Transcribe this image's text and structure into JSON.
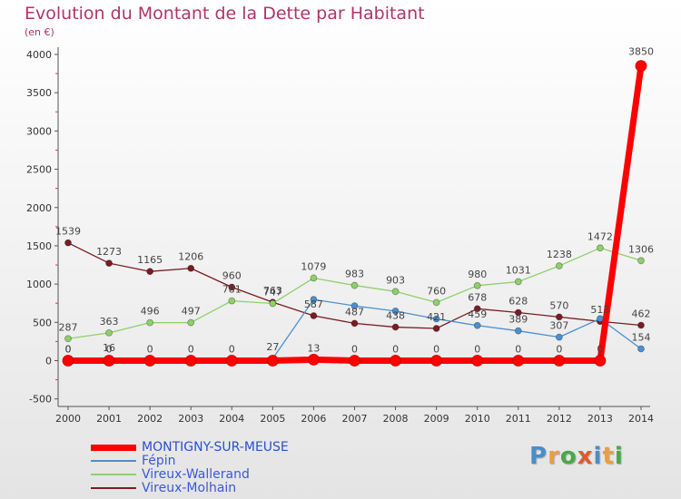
{
  "title": "Evolution du Montant de la Dette par Habitant",
  "subtitle": "(en €)",
  "brand": {
    "letters": [
      "P",
      "r",
      "o",
      "x",
      "i",
      "t",
      "i"
    ],
    "colors": [
      "#4a8ec8",
      "#e8a13a",
      "#4aa849",
      "#e05a2a",
      "#4a8ec8",
      "#e8a13a",
      "#4aa849"
    ]
  },
  "chart_data": {
    "type": "line",
    "x": [
      2000,
      2001,
      2002,
      2003,
      2004,
      2005,
      2006,
      2007,
      2008,
      2009,
      2010,
      2011,
      2012,
      2013,
      2014
    ],
    "xticks": [
      "2000",
      "2001",
      "2002",
      "2003",
      "2004",
      "2005",
      "2006",
      "2007",
      "2008",
      "2009",
      "2010",
      "2011",
      "2012",
      "2013",
      "2014"
    ],
    "yticks": [
      "4000",
      "3500",
      "3000",
      "2500",
      "2000",
      "1500",
      "1000",
      "500",
      "0",
      "-500"
    ],
    "ylim": [
      -500,
      4000
    ],
    "grid": false,
    "legend_position": "bottom-left",
    "series": [
      {
        "name": "MONTIGNY-SUR-MEUSE",
        "color": "#ff0000",
        "values": [
          0,
          0,
          0,
          0,
          0,
          0,
          13,
          0,
          0,
          0,
          0,
          0,
          0,
          0,
          3850
        ],
        "labels": [
          "0",
          "0",
          "0",
          "0",
          "0",
          "",
          "13",
          "0",
          "0",
          "0",
          "0",
          "0",
          "0",
          "0",
          "3850"
        ]
      },
      {
        "name": "Fépin",
        "color": "#4a90d0",
        "values": [
          0,
          16,
          24,
          13,
          0,
          27,
          799,
          716,
          647,
          545,
          459,
          389,
          307,
          548,
          154
        ],
        "labels": [
          "0",
          "16",
          "",
          "",
          "",
          "27",
          "",
          "",
          "",
          "",
          "459",
          "389",
          "307",
          "",
          "154"
        ]
      },
      {
        "name": "Vireux-Wallerand",
        "color": "#8ed06a",
        "values": [
          287,
          363,
          496,
          497,
          781,
          747,
          1079,
          983,
          903,
          760,
          980,
          1031,
          1238,
          1472,
          1306
        ],
        "labels": [
          "287",
          "363",
          "496",
          "497",
          "781",
          "747",
          "1079",
          "983",
          "903",
          "760",
          "980",
          "1031",
          "1238",
          "1472",
          "1306"
        ]
      },
      {
        "name": "Vireux-Molhain",
        "color": "#7a1c24",
        "values": [
          1539,
          1273,
          1165,
          1206,
          960,
          763,
          587,
          487,
          438,
          421,
          678,
          628,
          570,
          513,
          462
        ],
        "labels": [
          "1539",
          "1273",
          "1165",
          "1206",
          "960",
          "763",
          "587",
          "487",
          "438",
          "421",
          "678",
          "628",
          "570",
          "513",
          "462"
        ]
      }
    ]
  }
}
